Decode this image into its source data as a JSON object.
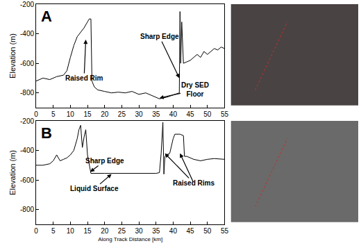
{
  "chart_data": [
    {
      "type": "line",
      "title": "A",
      "color": "#000000",
      "line_style": "solid",
      "y_label": "Elevation (m)",
      "xlim": [
        0,
        55
      ],
      "xticks": [
        0,
        5,
        10,
        15,
        20,
        25,
        30,
        35,
        40,
        45,
        50,
        55
      ],
      "ylim": [
        -900,
        -200
      ],
      "yticks": [
        -800,
        -600,
        -400,
        -200
      ],
      "grid": false,
      "x": [
        0,
        2,
        4,
        6,
        8,
        9,
        10,
        11,
        12,
        13,
        14,
        15,
        15.5,
        16,
        16.3,
        17,
        18,
        20,
        22,
        24,
        26,
        28,
        30,
        32,
        34,
        35,
        36,
        38,
        40,
        41,
        41.8,
        42,
        42.2,
        42.5,
        43,
        44,
        45,
        46,
        47,
        48,
        49,
        50,
        51,
        52,
        53,
        54,
        55
      ],
      "values": [
        -720,
        -700,
        -710,
        -690,
        -680,
        -650,
        -560,
        -480,
        -420,
        -390,
        -360,
        -320,
        -300,
        -300,
        -720,
        -760,
        -780,
        -790,
        -800,
        -795,
        -800,
        -790,
        -810,
        -800,
        -820,
        -830,
        -840,
        -830,
        -815,
        -805,
        -800,
        -250,
        -600,
        -320,
        -600,
        -590,
        -580,
        -560,
        -540,
        -560,
        -520,
        -540,
        -520,
        -500,
        -510,
        -490,
        -500
      ],
      "annotations": [
        {
          "text": "Raised Rim",
          "text_x": 14,
          "text_y": -700,
          "targets": [
            [
              14.5,
              -440
            ]
          ]
        },
        {
          "text": "Sharp Edge",
          "text_x": 36,
          "text_y": -420,
          "targets": [
            [
              41.8,
              -700
            ]
          ]
        },
        {
          "text": "Dry SED\nFloor",
          "text_x": 46.5,
          "text_y": -780,
          "targets": [
            [
              36,
              -835
            ]
          ]
        }
      ]
    },
    {
      "type": "line",
      "title": "B",
      "color": "#000000",
      "line_style": "solid",
      "y_label": "Elevation (m)",
      "x_label": "Along Track Distance [km]",
      "xlim": [
        0,
        55
      ],
      "xticks": [
        0,
        5,
        10,
        15,
        20,
        25,
        30,
        35,
        40,
        45,
        50,
        55
      ],
      "ylim": [
        -900,
        -200
      ],
      "yticks": [
        -800,
        -600,
        -400,
        -200
      ],
      "grid": false,
      "x": [
        0,
        2,
        4,
        5,
        6,
        7,
        8,
        9,
        10,
        11,
        12,
        12.5,
        13,
        13.5,
        14,
        14.5,
        15,
        15.5,
        16,
        20,
        25,
        30,
        35,
        36,
        36.5,
        37,
        37.3,
        37.6,
        38,
        39,
        40,
        40.5,
        42,
        43,
        43.3,
        44,
        46,
        48,
        50,
        52,
        55
      ],
      "values": [
        -500,
        -500,
        -490,
        -470,
        -430,
        -470,
        -460,
        -450,
        -430,
        -400,
        -320,
        -260,
        -230,
        -380,
        -310,
        -260,
        -430,
        -500,
        -555,
        -555,
        -555,
        -555,
        -555,
        -550,
        -420,
        -210,
        -560,
        -440,
        -430,
        -420,
        -320,
        -290,
        -290,
        -300,
        -440,
        -440,
        -460,
        -470,
        -460,
        -455,
        -460
      ],
      "annotations": [
        {
          "text": "Sharp Edge",
          "text_x": 20,
          "text_y": -470,
          "targets": [
            [
              15.8,
              -545
            ]
          ]
        },
        {
          "text": "Liquid Surface",
          "text_x": 17,
          "text_y": -660,
          "targets": [
            [
              22,
              -560
            ]
          ]
        },
        {
          "text": "Raised Rims",
          "text_x": 46,
          "text_y": -620,
          "targets": [
            [
              37.6,
              -420
            ],
            [
              42,
              -420
            ]
          ]
        }
      ]
    }
  ]
}
